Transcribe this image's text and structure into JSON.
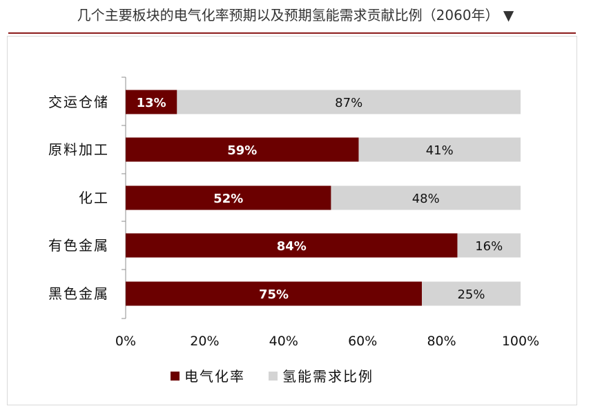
{
  "header": {
    "title": "几个主要板块的电气化率预期以及预期氢能需求贡献比例（2060年） ▼"
  },
  "colors": {
    "electrification": "#6b0000",
    "hydrogen": "#d4d4d4",
    "rule": "#8b1a1a"
  },
  "chart_data": {
    "type": "bar",
    "orientation": "horizontal",
    "stacked": true,
    "categories": [
      "交运仓储",
      "原料加工",
      "化工",
      "有色金属",
      "黑色金属"
    ],
    "series": [
      {
        "name": "电气化率",
        "values": [
          13,
          59,
          52,
          84,
          75
        ],
        "labels": [
          "13%",
          "59%",
          "52%",
          "84%",
          "75%"
        ]
      },
      {
        "name": "氢能需求比例",
        "values": [
          87,
          41,
          48,
          16,
          25
        ],
        "labels": [
          "87%",
          "41%",
          "48%",
          "16%",
          "25%"
        ]
      }
    ],
    "x_ticks": [
      "0%",
      "20%",
      "40%",
      "60%",
      "80%",
      "100%"
    ],
    "xlim": [
      0,
      100
    ],
    "grid": false,
    "legend_position": "bottom"
  }
}
